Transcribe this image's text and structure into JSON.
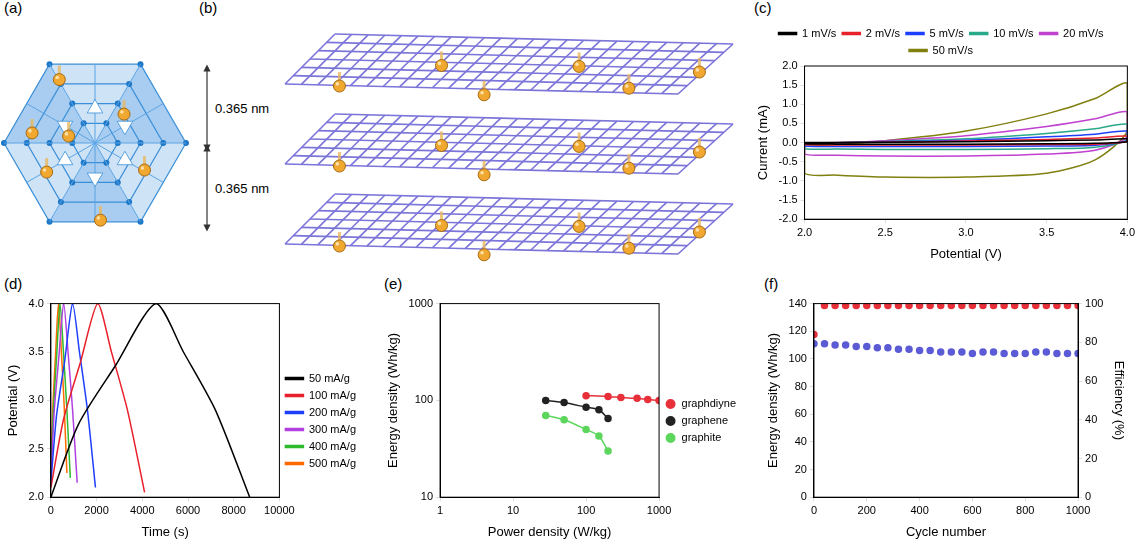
{
  "diagrams": [
    {
      "panel": "(a)"
    },
    {
      "panel": "(b)",
      "annotations": [
        "0.365 nm",
        "0.365 nm"
      ]
    }
  ],
  "chart_data": [
    {
      "panel": "(c)",
      "type": "line",
      "x_label": "Potential (V)",
      "y_label": "Current (mA)",
      "xlim": [
        2,
        4
      ],
      "xticks": [
        {
          "value": 2,
          "label": "2.0"
        },
        {
          "value": 2.5,
          "label": "2.5"
        },
        {
          "value": 3,
          "label": "3.0"
        },
        {
          "value": 3.5,
          "label": "3.5"
        },
        {
          "value": 4,
          "label": "4.0"
        }
      ],
      "ylim": [
        -2,
        2
      ],
      "yticks": [
        {
          "value": -2,
          "label": "-2.0"
        },
        {
          "value": -1.5,
          "label": "-1.5"
        },
        {
          "value": -1,
          "label": "-1.0"
        },
        {
          "value": -0.5,
          "label": "-0.5"
        },
        {
          "value": 0,
          "label": "0.0"
        },
        {
          "value": 0.5,
          "label": "0.5"
        },
        {
          "value": 1,
          "label": "1.0"
        },
        {
          "value": 1.5,
          "label": "1.5"
        },
        {
          "value": 2,
          "label": "2.0"
        }
      ],
      "grid": false,
      "legend": "top",
      "x": [
        2.0,
        2.5,
        3.0,
        3.5,
        3.8,
        4.0,
        4.0,
        3.8,
        3.5,
        3.0,
        2.5,
        2.2,
        2.0,
        2.0
      ],
      "series": [
        {
          "name": "1 mV/s",
          "color": "#000000",
          "values": [
            0,
            0.01,
            0.02,
            0.05,
            0.07,
            0.1,
            0.02,
            -0.02,
            -0.03,
            -0.04,
            -0.04,
            -0.04,
            -0.03,
            0
          ]
        },
        {
          "name": "2 mV/s",
          "color": "#e8202a",
          "values": [
            -0.01,
            0.01,
            0.04,
            0.08,
            0.12,
            0.17,
            0.03,
            -0.04,
            -0.05,
            -0.06,
            -0.06,
            -0.06,
            -0.05,
            -0.01
          ]
        },
        {
          "name": "5 mV/s",
          "color": "#1f3fff",
          "values": [
            -0.02,
            0.02,
            0.06,
            0.15,
            0.22,
            0.3,
            0.05,
            -0.07,
            -0.09,
            -0.1,
            -0.1,
            -0.1,
            -0.09,
            -0.02
          ]
        },
        {
          "name": "10 mV/s",
          "color": "#2aa88a",
          "values": [
            -0.03,
            0.03,
            0.1,
            0.24,
            0.36,
            0.48,
            0.08,
            -0.12,
            -0.16,
            -0.18,
            -0.18,
            -0.17,
            -0.16,
            -0.03
          ]
        },
        {
          "name": "20 mV/s",
          "color": "#c040d0",
          "values": [
            -0.05,
            0.05,
            0.18,
            0.42,
            0.62,
            0.8,
            0.15,
            -0.2,
            -0.3,
            -0.35,
            -0.35,
            -0.33,
            -0.3,
            -0.05
          ]
        },
        {
          "name": "50 mV/s",
          "color": "#808010",
          "values": [
            -0.1,
            0.05,
            0.3,
            0.75,
            1.15,
            1.55,
            0.3,
            -0.45,
            -0.8,
            -0.9,
            -0.9,
            -0.85,
            -0.8,
            -0.1
          ]
        }
      ]
    },
    {
      "panel": "(d)",
      "type": "line",
      "x_label": "Time (s)",
      "y_label": "Potential (V)",
      "xlim": [
        0,
        10000
      ],
      "xticks": [
        0,
        2000,
        4000,
        6000,
        8000,
        10000
      ],
      "ylim": [
        2,
        4
      ],
      "yticks": [
        {
          "value": 2,
          "label": "2.0"
        },
        {
          "value": 2.5,
          "label": "2.5"
        },
        {
          "value": 3,
          "label": "3.0"
        },
        {
          "value": 3.5,
          "label": "3.5"
        },
        {
          "value": 4,
          "label": "4.0"
        }
      ],
      "grid": false,
      "legend": "right",
      "series": [
        {
          "name": "50 mA/g",
          "color": "#000000",
          "x": [
            0,
            1200,
            2800,
            4600,
            5800,
            7200,
            8700
          ],
          "values": [
            2.0,
            2.75,
            3.35,
            4.0,
            3.5,
            2.9,
            2.0
          ]
        },
        {
          "name": "100 mA/g",
          "color": "#e8202a",
          "x": [
            0,
            550,
            1300,
            2050,
            2650,
            3350,
            4100
          ],
          "values": [
            2.1,
            2.8,
            3.4,
            4.0,
            3.5,
            2.9,
            2.05
          ]
        },
        {
          "name": "200 mA/g",
          "color": "#1f3fff",
          "x": [
            0,
            250,
            600,
            950,
            1250,
            1600,
            1950
          ],
          "values": [
            2.15,
            2.85,
            3.4,
            4.0,
            3.5,
            2.9,
            2.1
          ]
        },
        {
          "name": "300 mA/g",
          "color": "#b040e0",
          "x": [
            0,
            150,
            350,
            560,
            750,
            950,
            1150
          ],
          "values": [
            2.2,
            2.9,
            3.45,
            4.0,
            3.5,
            2.9,
            2.15
          ]
        },
        {
          "name": "400 mA/g",
          "color": "#2eb82e",
          "x": [
            0,
            110,
            250,
            400,
            550,
            700,
            850
          ],
          "values": [
            2.25,
            2.9,
            3.45,
            4.0,
            3.5,
            2.9,
            2.2
          ]
        },
        {
          "name": "500 mA/g",
          "color": "#ff6a00",
          "x": [
            0,
            90,
            210,
            330,
            460,
            580,
            700
          ],
          "values": [
            2.3,
            2.95,
            3.5,
            4.0,
            3.5,
            2.95,
            2.25
          ]
        }
      ]
    },
    {
      "panel": "(e)",
      "type": "line",
      "x_label": "Power density (W/kg)",
      "y_label": "Energy density (Wh/kg)",
      "log": true,
      "xlim": [
        1,
        1000
      ],
      "xticks": [
        1,
        10,
        100,
        1000
      ],
      "ylim": [
        10,
        1000
      ],
      "yticks": [
        10,
        100,
        1000
      ],
      "grid": false,
      "legend": "right",
      "series": [
        {
          "name": "graphdiyne",
          "color": "#e8303a",
          "marker": "circle",
          "x": [
            100,
            200,
            300,
            500,
            700,
            1000
          ],
          "values": [
            112,
            110,
            107,
            105,
            102,
            100
          ]
        },
        {
          "name": "graphene",
          "color": "#222222",
          "marker": "circle",
          "x": [
            28,
            50,
            100,
            150,
            200
          ],
          "values": [
            100,
            95,
            85,
            80,
            65
          ]
        },
        {
          "name": "graphite",
          "color": "#5cd65c",
          "marker": "circle",
          "x": [
            28,
            50,
            100,
            150,
            200
          ],
          "values": [
            70,
            63,
            50,
            43,
            30
          ]
        }
      ]
    },
    {
      "panel": "(f)",
      "type": "scatter",
      "x_label": "Cycle number",
      "y_label": "Energy density (Wh/kg)",
      "y2_label": "Efficiency (%)",
      "xlim": [
        0,
        1000
      ],
      "xticks": [
        0,
        200,
        400,
        600,
        800,
        1000
      ],
      "ylim": [
        0,
        140
      ],
      "yticks": [
        0,
        20,
        40,
        60,
        80,
        100,
        120,
        140
      ],
      "y2lim": [
        0,
        100
      ],
      "y2ticks": [
        0,
        20,
        40,
        60,
        80,
        100
      ],
      "grid": false,
      "x": [
        0,
        40,
        80,
        120,
        160,
        200,
        240,
        280,
        320,
        360,
        400,
        440,
        480,
        520,
        560,
        600,
        640,
        680,
        720,
        760,
        800,
        840,
        880,
        920,
        960,
        1000
      ],
      "series": [
        {
          "color": "#5b5bd6",
          "marker": "circle",
          "values": [
            111,
            111,
            110,
            110,
            109,
            109,
            108,
            108,
            107,
            107,
            106,
            106,
            105,
            105,
            105,
            104,
            105,
            105,
            104,
            104,
            104,
            105,
            105,
            104,
            104,
            104
          ]
        },
        {
          "color": "#e8303a",
          "marker": "circle",
          "axis": "y2",
          "values": [
            84,
            99,
            99,
            99,
            99,
            99,
            99,
            99,
            99,
            99,
            99,
            99,
            99,
            99,
            99,
            99,
            99,
            99,
            99,
            99,
            99,
            99,
            99,
            99,
            99,
            99
          ]
        }
      ]
    }
  ]
}
